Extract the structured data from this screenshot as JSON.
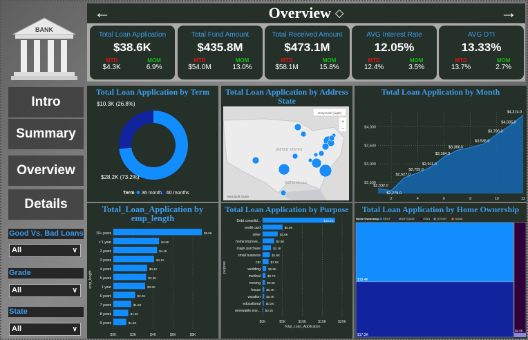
{
  "header": {
    "title": "Overview",
    "back_icon": "arrow-left-icon",
    "forward_icon": "arrow-right-icon",
    "eraser_icon": "eraser-icon"
  },
  "logo": {
    "text": "BANK"
  },
  "kpis": [
    {
      "label": "Total Loan Application",
      "value": "$38.6K",
      "mtd_label": "MTD",
      "mtd": "$4.3K",
      "mom_label": "MOM",
      "mom": "6.9%"
    },
    {
      "label": "Total Fund Amount",
      "value": "$435.8M",
      "mtd_label": "MTD",
      "mtd": "$54.0M",
      "mom_label": "MOM",
      "mom": "13.0%"
    },
    {
      "label": "Total Received Amount",
      "value": "$473.1M",
      "mtd_label": "MTD",
      "mtd": "$58.1M",
      "mom_label": "MOM",
      "mom": "15.8%"
    },
    {
      "label": "AVG Interest Rate",
      "value": "12.05%",
      "mtd_label": "MTD",
      "mtd": "12.4%",
      "mom_label": "MOM",
      "mom": "3.5%"
    },
    {
      "label": "AVG DTI",
      "value": "13.33%",
      "mtd_label": "MTD",
      "mtd": "13.7%",
      "mom_label": "MOM",
      "mom": "2.7%"
    }
  ],
  "nav": [
    "Intro",
    "Summary",
    "Overview",
    "Details"
  ],
  "filters": [
    {
      "label": "Good Vs. Bad Loans",
      "value": "All"
    },
    {
      "label": "Grade",
      "value": "All"
    },
    {
      "label": "State",
      "value": "All"
    }
  ],
  "colors": {
    "bar": "#118DFF",
    "dark_blue": "#12239E",
    "title": "#3D9BE9",
    "card": "#253029"
  },
  "map": {
    "title": "Total Loan Application by Address State",
    "style_label": "Grayscale (Light)",
    "country_label": "UNITED STATES",
    "gulf_label": "Gulf of Mexico",
    "brand": "Microsoft Azure"
  },
  "chart_data": [
    {
      "type": "pie",
      "title": "Total Loan Application by Term",
      "legend_title": "Term",
      "categories": [
        "36 months",
        "60 months"
      ],
      "values": [
        28.2,
        10.3
      ],
      "labels": [
        "$28.2K (73.2%)",
        "$10.3K (26.8%)"
      ],
      "colors": [
        "#118DFF",
        "#12239E"
      ],
      "legend": "bottom"
    },
    {
      "type": "area",
      "title": "Total Loan Application by Month",
      "x": [
        1,
        2,
        3,
        4,
        5,
        6,
        7,
        8,
        9,
        10,
        11,
        12
      ],
      "values": [
        2332,
        2279,
        2627,
        2755,
        2911,
        3184,
        3366,
        3441,
        3536,
        3796,
        4035,
        4314
      ],
      "labels": [
        "$2,332.0",
        "$2,279.0",
        "$2,627.0",
        "$2,755.0",
        "$2,911.0",
        "$3,184.0",
        "$3,366.0",
        "",
        "$3,536.0",
        "$3,796.0",
        "$4,035.0",
        "$4,314.0"
      ],
      "yticks": [
        "$2,500",
        "$3,000",
        "$3,500",
        "$4,000"
      ],
      "xticks": [
        "2",
        "4",
        "6",
        "8",
        "10",
        "12"
      ],
      "ylim": [
        2200,
        4400
      ],
      "xlim": [
        1,
        12
      ],
      "grid": true
    },
    {
      "type": "bar",
      "title": "Total_Loan_Application by emp_length",
      "xlabel": "Total_Loan_Application",
      "ylabel": "emp_length",
      "categories": [
        "10+ years",
        "< 1 year",
        "2 years",
        "3 years",
        "4 years",
        "5 years",
        "1 year",
        "6 years",
        "7 years",
        "8 years",
        "9 years"
      ],
      "values": [
        8.9,
        4.6,
        4.4,
        4.1,
        3.4,
        3.3,
        3.2,
        2.2,
        1.8,
        1.5,
        1.3
      ],
      "labels": [
        "$8.9K",
        "$4.6K",
        "$4.4K",
        "$4.1K",
        "$3.4K",
        "$3.3K",
        "$3.2K",
        "$2.2K",
        "$1.8K",
        "$1.5K",
        "$1.3K"
      ],
      "xticks": [
        "$0K",
        "$2K",
        "$4K",
        "$6K",
        "$8K"
      ],
      "xlim": [
        0,
        8.9
      ]
    },
    {
      "type": "bar",
      "title": "Total Loan Application by Purpose",
      "xlabel": "Total_Loan_Application",
      "ylabel": "purpose",
      "categories": [
        "Debt consolid...",
        "credit card",
        "other",
        "home improve...",
        "major purchase",
        "small business",
        "car",
        "wedding",
        "medical",
        "moving",
        "house",
        "vacation",
        "educational",
        "renewable ene..."
      ],
      "values": [
        18.2,
        5.0,
        3.8,
        2.9,
        2.1,
        1.8,
        1.5,
        0.9,
        0.7,
        0.6,
        0.4,
        0.4,
        0.3,
        0.1
      ],
      "labels": [
        "$18.2K",
        "$5.0K",
        "$3.8K",
        "$2.9K",
        "$2.1K",
        "$1.8K",
        "$1.5K",
        "$0.9K",
        "$0.7K",
        "$0.6K",
        "$0.4K",
        "$0.4K",
        "$0.3K",
        "$0.1K"
      ],
      "xticks": [
        "$0K",
        "$5K",
        "$10K",
        "$15K",
        "$20K"
      ],
      "xlim": [
        0,
        20
      ]
    },
    {
      "type": "treemap",
      "title": "Total Loan Application by Home Ownership",
      "legend_title": "Home Ownership",
      "categories": [
        "RENT",
        "MORTGAGE",
        "OWN",
        "OTHER",
        "NONE"
      ],
      "values": [
        18.4,
        17.2,
        2.8,
        0.1,
        0.0
      ],
      "labels": [
        "$18.4K",
        "$17.2K",
        "$2.8K",
        "",
        ""
      ],
      "colors": [
        "#118DFF",
        "#12239E",
        "#2E0037",
        "#8A86E0",
        "#E66C37"
      ]
    }
  ]
}
